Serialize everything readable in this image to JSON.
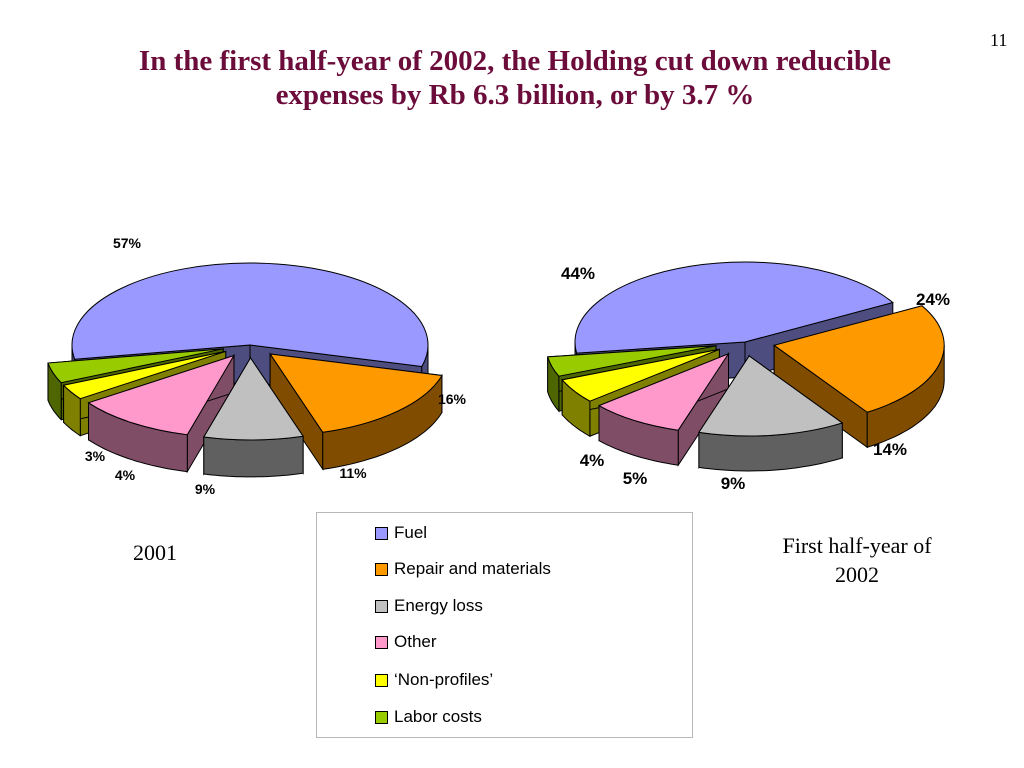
{
  "page_number": "11",
  "title": {
    "line1": "In the first half-year of 2002, the Holding cut down reducible",
    "line2": "expenses by Rb 6.3 billion,  or by 3.7 %"
  },
  "captions": {
    "chart_2001": "2001",
    "chart_2002_line1": "First half-year of",
    "chart_2002_line2": "2002"
  },
  "legend": [
    {
      "label": "Fuel",
      "color": "#9999ff"
    },
    {
      "label": "Repair and materials",
      "color": "#ff9900"
    },
    {
      "label": "Energy loss",
      "color": "#c0c0c0"
    },
    {
      "label": "Other",
      "color": "#ff99cc"
    },
    {
      "label": "‘Non-profiles’",
      "color": "#ffff00"
    },
    {
      "label": "Labor costs",
      "color": "#99cc00"
    }
  ],
  "chart_data": [
    {
      "type": "pie",
      "style": "3d-exploded",
      "title": "2001",
      "categories": [
        "Fuel",
        "Repair and materials",
        "Energy loss",
        "Other",
        "‘Non-profiles’",
        "Labor costs"
      ],
      "values": [
        57,
        16,
        9,
        11,
        3,
        4
      ],
      "labels": [
        "57%",
        "16%",
        "9%",
        "11%",
        "3%",
        "4%"
      ]
    },
    {
      "type": "pie",
      "style": "3d-exploded",
      "title": "First half-year of 2002",
      "categories": [
        "Fuel",
        "Repair and materials",
        "Energy loss",
        "Other",
        "‘Non-profiles’",
        "Labor costs"
      ],
      "values": [
        44,
        24,
        14,
        9,
        5,
        4
      ],
      "labels": [
        "44%",
        "24%",
        "14%",
        "9%",
        "5%",
        "4%"
      ]
    }
  ]
}
